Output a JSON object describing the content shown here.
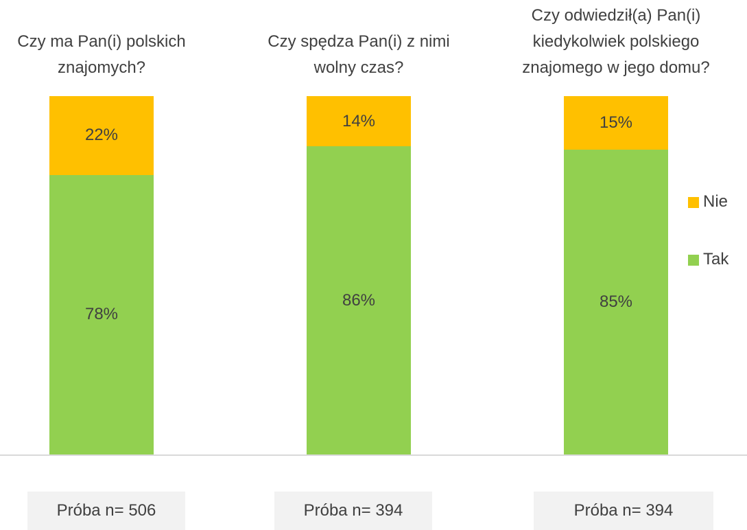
{
  "chart_data": {
    "type": "stacked_bar",
    "categories": [
      "Czy ma Pan(i) polskich znajomych?",
      "Czy spędza Pan(i) z nimi wolny czas?",
      "Czy odwiedził(a) Pan(i) kiedykolwiek polskiego znajomego w jego domu?"
    ],
    "series": [
      {
        "name": "Tak",
        "color": "#92d050",
        "values": [
          78,
          86,
          85
        ],
        "value_labels": [
          "78%",
          "86%",
          "85%"
        ]
      },
      {
        "name": "Nie",
        "color": "#ffc000",
        "values": [
          22,
          14,
          15
        ],
        "value_labels": [
          "22%",
          "14%",
          "15%"
        ]
      }
    ],
    "ylim": [
      0,
      100
    ],
    "legend": "right",
    "notes": [
      "Próba n= 506",
      "Próba n= 394",
      "Próba n= 394"
    ]
  }
}
